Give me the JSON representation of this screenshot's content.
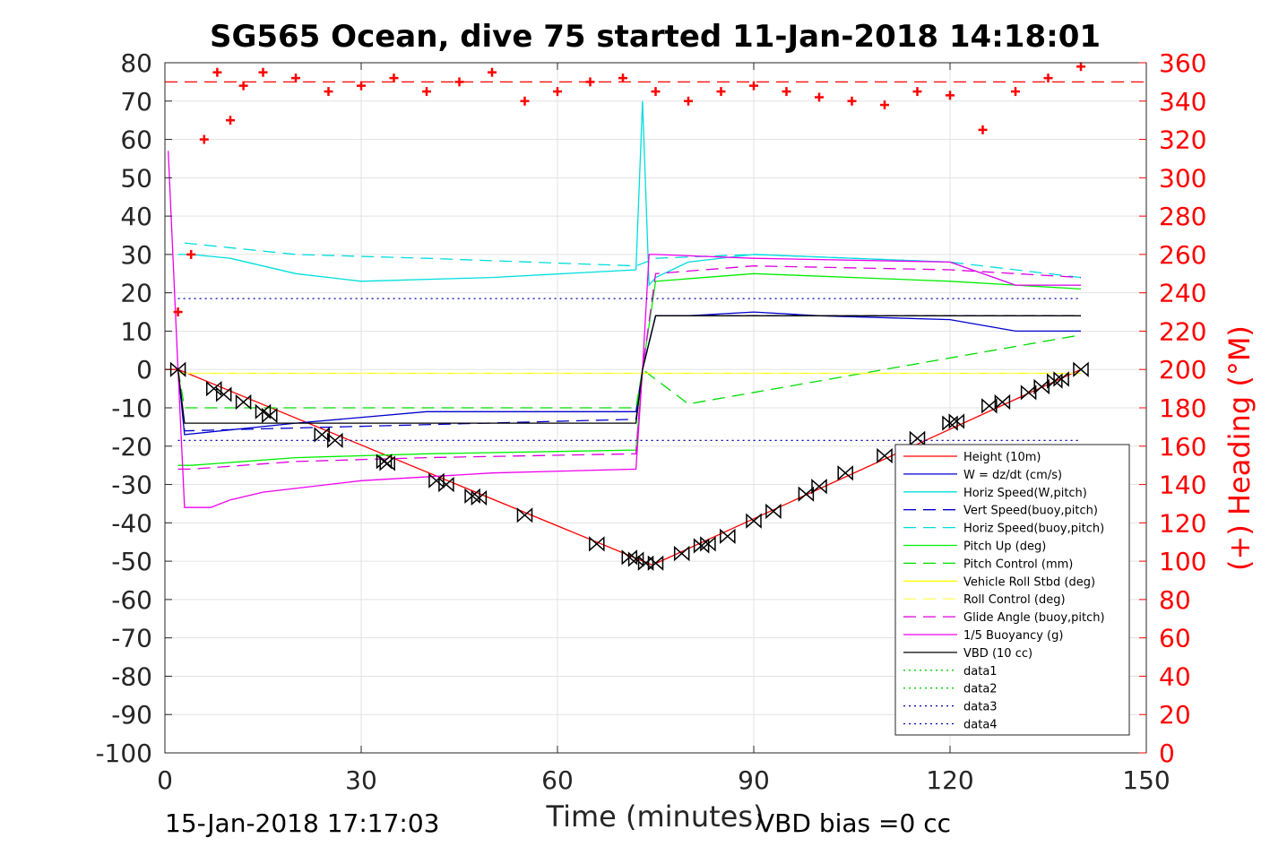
{
  "chart_data": {
    "type": "line",
    "title": "SG565 Ocean, dive 75 started 11-Jan-2018 14:18:01",
    "xlabel": "Time (minutes)",
    "ylabel_right": "(+) Heading (°M)",
    "xlim": [
      0,
      150
    ],
    "ylim": [
      -100,
      80
    ],
    "ylim_right": [
      0,
      360
    ],
    "x_ticks": [
      0,
      30,
      60,
      90,
      120,
      150
    ],
    "y_ticks": [
      80,
      70,
      60,
      50,
      40,
      30,
      20,
      10,
      0,
      -10,
      -20,
      -30,
      -40,
      -50,
      -60,
      -70,
      -80,
      -90,
      -100
    ],
    "y_ticks_right": [
      360,
      340,
      320,
      300,
      280,
      260,
      240,
      220,
      200,
      180,
      160,
      140,
      120,
      100,
      80,
      60,
      40,
      20,
      0
    ],
    "grid": true,
    "legend_position": "lower-right",
    "footer_left": "15-Jan-2018 17:17:03",
    "footer_right": "VBD bias =0 cc",
    "series": [
      {
        "name": "Height (10m)",
        "color": "#ff0000",
        "style": "solid",
        "x": [
          0,
          2,
          74.5,
          140
        ],
        "values": [
          0,
          0,
          -51,
          0
        ]
      },
      {
        "name": "W = dz/dt (cm/s)",
        "color": "#0000cc",
        "style": "solid",
        "x": [
          2,
          3,
          20,
          40,
          60,
          72,
          73,
          75,
          80,
          90,
          100,
          120,
          130,
          140
        ],
        "values": [
          0,
          -17,
          -14,
          -11,
          -11,
          -11,
          0,
          14,
          14,
          15,
          14,
          13,
          10,
          10
        ]
      },
      {
        "name": "Horiz Speed(W,pitch)",
        "color": "#00dddd",
        "style": "solid",
        "x": [
          2,
          4,
          10,
          20,
          30,
          50,
          72,
          73,
          74,
          75,
          80,
          90,
          120,
          130,
          140
        ],
        "values": [
          30,
          30,
          29,
          25,
          23,
          24,
          26,
          70,
          22,
          24,
          28,
          30,
          28,
          22,
          22
        ]
      },
      {
        "name": "Vert Speed(buoy,pitch)",
        "color": "#0000cc",
        "style": "dashed",
        "x": [
          2,
          3,
          72,
          73,
          75,
          140
        ],
        "values": [
          0,
          -16,
          -13,
          0,
          14,
          14
        ]
      },
      {
        "name": "Horiz Speed(buoy,pitch)",
        "color": "#00dddd",
        "style": "dashed",
        "x": [
          3,
          20,
          40,
          72,
          75,
          90,
          120,
          140
        ],
        "values": [
          33,
          30,
          29,
          27,
          29,
          30,
          28,
          24
        ]
      },
      {
        "name": "Pitch Up (deg)",
        "color": "#00ee00",
        "style": "solid",
        "x": [
          2,
          4,
          20,
          40,
          72,
          73,
          75,
          90,
          120,
          140
        ],
        "values": [
          -25,
          -25,
          -23,
          -22,
          -21,
          0,
          23,
          25,
          23,
          21
        ]
      },
      {
        "name": "Pitch Control (mm)",
        "color": "#00dd00",
        "style": "dashed",
        "x": [
          2,
          3,
          72,
          73,
          80,
          140
        ],
        "values": [
          0,
          -10,
          -10,
          0,
          -9,
          9
        ]
      },
      {
        "name": "Vehicle Roll Stbd (deg)",
        "color": "#ffff00",
        "style": "solid",
        "x": [
          2,
          72,
          73,
          140
        ],
        "values": [
          -1,
          -1,
          -1,
          -1
        ]
      },
      {
        "name": "Roll Control (deg)",
        "color": "#ffff66",
        "style": "dashed",
        "x": [
          2,
          72,
          73,
          140
        ],
        "values": [
          -1,
          -1,
          -1,
          -1
        ]
      },
      {
        "name": "Glide Angle (buoy,pitch)",
        "color": "#dd00dd",
        "style": "dashed",
        "x": [
          2,
          4,
          20,
          40,
          72,
          73,
          75,
          90,
          120,
          140
        ],
        "values": [
          -26,
          -26,
          -24,
          -23,
          -22,
          0,
          25,
          27,
          26,
          24
        ]
      },
      {
        "name": "1/5 Buoyancy (g)",
        "color": "#ee00ee",
        "style": "solid",
        "x": [
          0.5,
          2,
          3,
          7,
          10,
          15,
          30,
          50,
          72,
          73,
          74,
          75,
          90,
          120,
          130,
          140
        ],
        "values": [
          57,
          0,
          -36,
          -36,
          -34,
          -32,
          -29,
          -27,
          -26,
          0,
          30,
          30,
          29,
          28,
          22,
          22
        ]
      },
      {
        "name": "VBD (10 cc)",
        "color": "#000000",
        "style": "solid",
        "x": [
          2,
          3,
          72,
          73,
          75,
          140
        ],
        "values": [
          0,
          -14,
          -14,
          0,
          14,
          14
        ]
      },
      {
        "name": "data1",
        "color": "#00cc00",
        "style": "dotted",
        "x": [],
        "values": []
      },
      {
        "name": "data2",
        "color": "#00cc00",
        "style": "dotted",
        "x": [],
        "values": []
      },
      {
        "name": "data3",
        "color": "#0000aa",
        "style": "dotted",
        "x": [
          2,
          140
        ],
        "values": [
          18.5,
          18.5
        ]
      },
      {
        "name": "data4",
        "color": "#0000aa",
        "style": "dotted",
        "x": [
          2,
          140
        ],
        "values": [
          -18.5,
          -18.5
        ]
      }
    ],
    "heading_series": {
      "color": "#ff0000",
      "marker": "+",
      "x": [
        2,
        4,
        6,
        8,
        10,
        12,
        15,
        20,
        25,
        30,
        35,
        40,
        45,
        50,
        55,
        60,
        65,
        70,
        75,
        80,
        85,
        90,
        95,
        100,
        105,
        110,
        115,
        120,
        125,
        130,
        135,
        140
      ],
      "values": [
        230,
        260,
        320,
        355,
        330,
        348,
        355,
        352,
        345,
        348,
        352,
        345,
        350,
        355,
        340,
        345,
        350,
        352,
        345,
        340,
        345,
        348,
        345,
        342,
        340,
        338,
        345,
        343,
        325,
        345,
        352,
        358
      ]
    },
    "heading_target": {
      "color": "#ff0000",
      "style": "dashed",
      "value": 350
    },
    "marker_points": {
      "color": "#000000",
      "x": [
        2,
        7.5,
        9,
        12,
        15,
        16,
        24,
        26,
        33.5,
        34,
        41.5,
        43,
        47,
        48,
        55,
        66,
        71,
        72,
        73.5,
        75,
        79,
        82,
        83,
        86,
        90,
        93,
        98,
        100,
        104,
        110,
        115,
        120,
        121,
        126,
        128,
        132,
        134,
        136,
        137,
        140
      ],
      "values": [
        0,
        -5,
        -6.5,
        -8.5,
        -11,
        -12,
        -17,
        -18.5,
        -24,
        -24.5,
        -29,
        -30,
        -33,
        -33.5,
        -38,
        -45.5,
        -49,
        -49.5,
        -50.5,
        -50.5,
        -48,
        -46,
        -45.5,
        -43.5,
        -39.5,
        -37,
        -32.5,
        -30.5,
        -27,
        -22.5,
        -18,
        -14,
        -13.5,
        -9.5,
        -8.5,
        -6,
        -4.5,
        -3,
        -2.5,
        0
      ]
    }
  }
}
